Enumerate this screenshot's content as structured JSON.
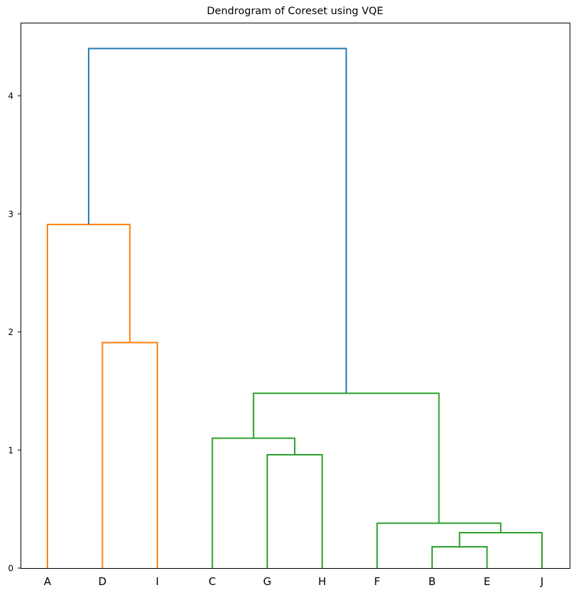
{
  "chart_data": {
    "type": "dendrogram",
    "title": "Dendrogram of Coreset using VQE",
    "xlabel": "",
    "ylabel": "",
    "ylim": [
      0,
      4.6
    ],
    "yticks": [
      0,
      1,
      2,
      3,
      4
    ],
    "grid": false,
    "legend": null,
    "leaves": [
      "A",
      "D",
      "I",
      "C",
      "G",
      "H",
      "F",
      "B",
      "E",
      "J"
    ],
    "colors": {
      "above_threshold": "#1f77b4",
      "cluster_1": "#ff7f0e",
      "cluster_2": "#2ca02c"
    },
    "merges": [
      {
        "left": "D",
        "right": "I",
        "height": 1.91,
        "color": "#ff7f0e"
      },
      {
        "left": "A",
        "right": "(D,I)",
        "height": 2.91,
        "color": "#ff7f0e"
      },
      {
        "left": "B",
        "right": "E",
        "height": 0.18,
        "color": "#2ca02c"
      },
      {
        "left": "(B,E)",
        "right": "J",
        "height": 0.3,
        "color": "#2ca02c"
      },
      {
        "left": "F",
        "right": "((B,E),J)",
        "height": 0.38,
        "color": "#2ca02c"
      },
      {
        "left": "G",
        "right": "H",
        "height": 0.96,
        "color": "#2ca02c"
      },
      {
        "left": "C",
        "right": "(G,H)",
        "height": 1.1,
        "color": "#2ca02c"
      },
      {
        "left": "(C,(G,H))",
        "right": "(F,((B,E),J))",
        "height": 1.48,
        "color": "#2ca02c"
      },
      {
        "left": "(A,(D,I))",
        "right": "((C,(G,H)),(F,((B,E),J)))",
        "height": 4.4,
        "color": "#1f77b4"
      }
    ]
  }
}
